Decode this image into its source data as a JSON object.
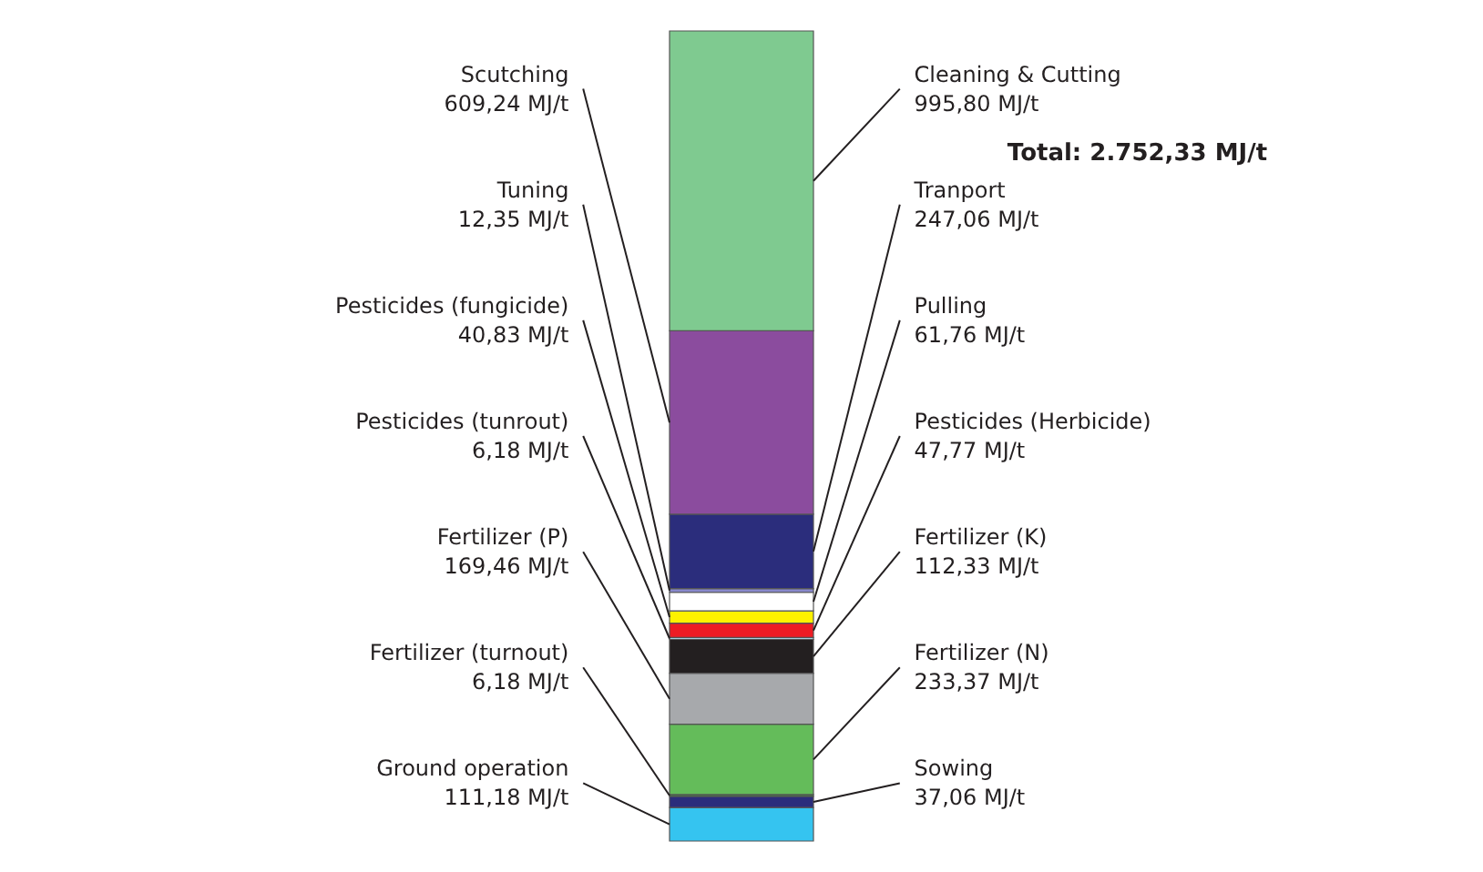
{
  "chart_data": {
    "type": "bar",
    "stacked": true,
    "categories": [
      null
    ],
    "series": [
      {
        "name": "Ground operation",
        "color": "#35c4f0",
        "values": [
          111.18
        ],
        "value_labels": [
          "111,18 MJ/t"
        ]
      },
      {
        "name": "Sowing",
        "color": "#2b2d7c",
        "values": [
          37.06
        ],
        "value_labels": [
          "37,06 MJ/t"
        ]
      },
      {
        "name": "Fertilizer (turnout)",
        "color": "#3a8a3a",
        "values": [
          6.18
        ],
        "value_labels": [
          "6,18 MJ/t"
        ]
      },
      {
        "name": "Fertilizer (N)",
        "color": "#64bc5a",
        "values": [
          233.37
        ],
        "value_labels": [
          "233,37 MJ/t"
        ]
      },
      {
        "name": "Fertilizer (P)",
        "color": "#a7a9ac",
        "values": [
          169.46
        ],
        "value_labels": [
          "169,46 MJ/t"
        ]
      },
      {
        "name": "Fertilizer (K)",
        "color": "#231f20",
        "values": [
          112.33
        ],
        "value_labels": [
          "112,33 MJ/t"
        ]
      },
      {
        "name": "Pesticides (tunrout)",
        "color": "#a9d0de",
        "values": [
          6.18
        ],
        "value_labels": [
          "6,18 MJ/t"
        ]
      },
      {
        "name": "Pesticides (Herbicide)",
        "color": "#ed1c24",
        "values": [
          47.77
        ],
        "value_labels": [
          "47,77 MJ/t"
        ]
      },
      {
        "name": "Pesticides (fungicide)",
        "color": "#fff200",
        "values": [
          40.83
        ],
        "value_labels": [
          "40,83 MJ/t"
        ]
      },
      {
        "name": "Pulling",
        "color": "#ffffff",
        "values": [
          61.76
        ],
        "value_labels": [
          "61,76 MJ/t"
        ]
      },
      {
        "name": "Tuning",
        "color": "#8888cc",
        "values": [
          12.35
        ],
        "value_labels": [
          "12,35 MJ/t"
        ]
      },
      {
        "name": "Tranport",
        "color": "#2b2d7c",
        "values": [
          247.06
        ],
        "value_labels": [
          "247,06 MJ/t"
        ]
      },
      {
        "name": "Scutching",
        "color": "#8b4c9e",
        "values": [
          609.24
        ],
        "value_labels": [
          "609,24 MJ/t"
        ]
      },
      {
        "name": "Cleaning & Cutting",
        "color": "#7fca90",
        "values": [
          995.8
        ],
        "value_labels": [
          "995,80 MJ/t"
        ]
      }
    ],
    "annotations": [
      "Total: 2.752,33 MJ/t"
    ]
  }
}
